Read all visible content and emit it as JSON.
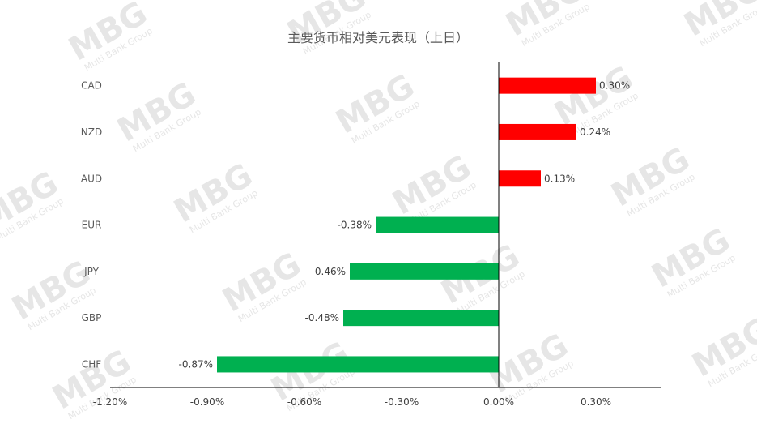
{
  "chart_data": {
    "type": "bar",
    "orientation": "horizontal",
    "title": "主要货币相对美元表现（上日）",
    "xlabel": "",
    "ylabel": "",
    "categories": [
      "CAD",
      "NZD",
      "AUD",
      "EUR",
      "JPY",
      "GBP",
      "CHF"
    ],
    "values": [
      0.3,
      0.24,
      0.13,
      -0.38,
      -0.46,
      -0.48,
      -0.87
    ],
    "data_labels": [
      "0.30%",
      "0.24%",
      "0.13%",
      "-0.38%",
      "-0.46%",
      "-0.48%",
      "-0.87%"
    ],
    "xlim": [
      -1.2,
      0.5
    ],
    "xticks": [
      -1.2,
      -0.9,
      -0.6,
      -0.3,
      0.0,
      0.3
    ],
    "xtick_labels": [
      "-1.20%",
      "-0.90%",
      "-0.60%",
      "-0.30%",
      "0.00%",
      "0.30%"
    ],
    "positive_color": "#ff0000",
    "negative_color": "#00b050",
    "grid": false,
    "legend": "none"
  },
  "watermark": {
    "text": "MBG",
    "subtext": "Multi Bank Group"
  }
}
